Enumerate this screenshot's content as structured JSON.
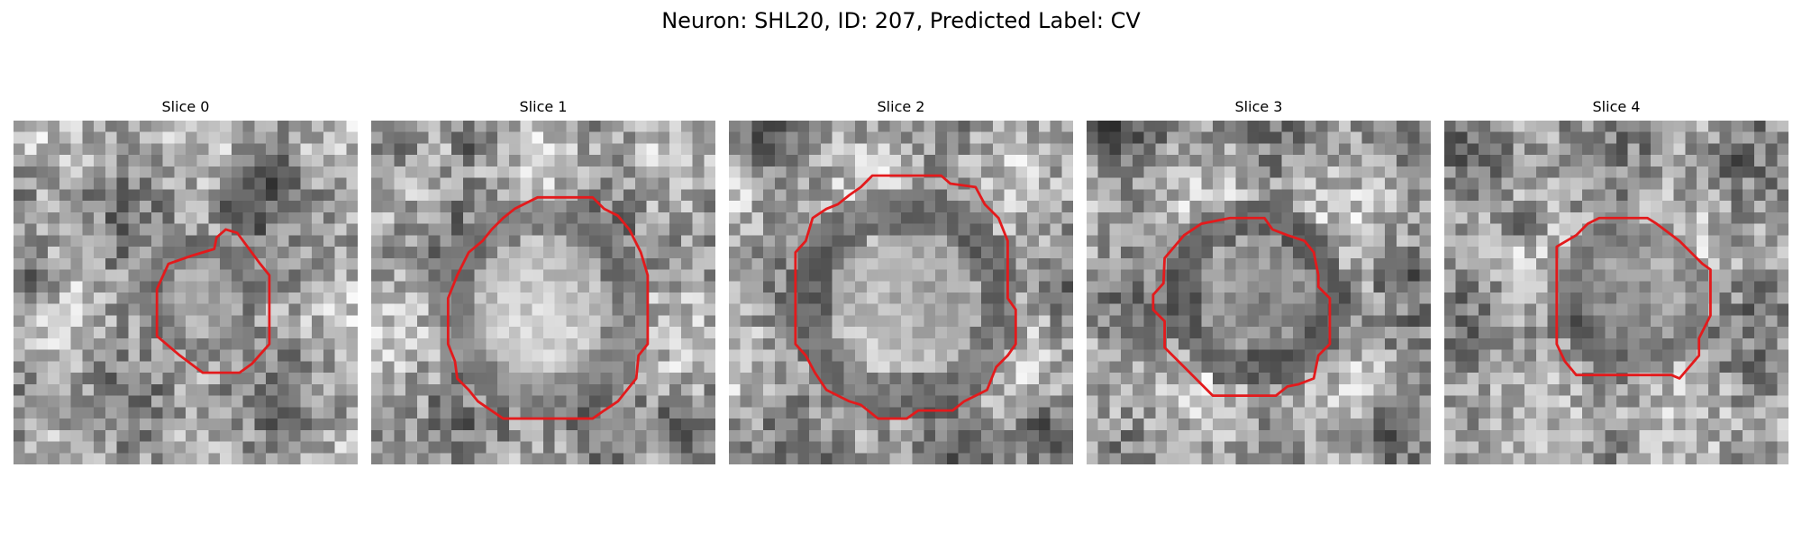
{
  "figure": {
    "title": "Neuron: SHL20, ID: 207, Predicted Label: CV",
    "contour_color": "#e31a1c",
    "colormap": "grayscale",
    "panels": [
      {
        "title": "Slice 0",
        "seed": 11,
        "description": "Small irregular outlined cell body surrounded by darker surrounding tissue"
      },
      {
        "title": "Slice 1",
        "seed": 23,
        "description": "Large round bright cell body with red polygonal outline"
      },
      {
        "title": "Slice 2",
        "seed": 37,
        "description": "Large round cell body with darker rim and red outline"
      },
      {
        "title": "Slice 3",
        "seed": 53,
        "description": "Dark ring-shaped cell body enclosed by red outline"
      },
      {
        "title": "Slice 4",
        "seed": 71,
        "description": "Faint cell body on noisy background with octagonal red outline"
      }
    ]
  }
}
